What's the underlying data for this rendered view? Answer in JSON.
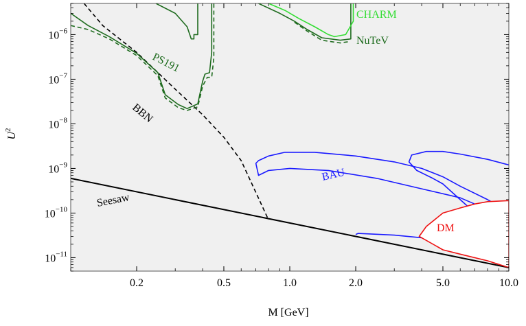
{
  "chart_data": {
    "type": "line",
    "xlabel": "M [GeV]",
    "ylabel": "U",
    "ylabel_sup": "2",
    "x_scale": "log",
    "y_scale": "log",
    "xlim": [
      0.1,
      10.0
    ],
    "ylim": [
      5e-12,
      5e-06
    ],
    "x_ticks": [
      {
        "value": 0.2,
        "label": "0.2"
      },
      {
        "value": 0.5,
        "label": "0.5"
      },
      {
        "value": 1.0,
        "label": "1.0"
      },
      {
        "value": 2.0,
        "label": "2.0"
      },
      {
        "value": 5.0,
        "label": "5.0"
      },
      {
        "value": 10.0,
        "label": "10.0"
      }
    ],
    "y_ticks": [
      {
        "value": 1e-11,
        "base": "10",
        "exp": "−11"
      },
      {
        "value": 1e-10,
        "base": "10",
        "exp": "−10"
      },
      {
        "value": 1e-09,
        "base": "10",
        "exp": "−9"
      },
      {
        "value": 1e-08,
        "base": "10",
        "exp": "−8"
      },
      {
        "value": 1e-07,
        "base": "10",
        "exp": "−7"
      },
      {
        "value": 1e-06,
        "base": "10",
        "exp": "−6"
      }
    ],
    "colors": {
      "background": "#f0f0f0",
      "frame": "#555555",
      "seesaw": "#000000",
      "bbn": "#000000",
      "ps191": "#1e6b1e",
      "nutev": "#1e6b1e",
      "charm": "#33dd33",
      "bau": "#1a1aff",
      "dm": "#ee1111",
      "dm_fill": "#ffffff"
    },
    "labels": {
      "charm": "CHARM",
      "nutev": "NuTeV",
      "ps191": "PS191",
      "bbn": "BBN",
      "bau": "BAU",
      "seesaw": "Seesaw",
      "dm": "DM"
    },
    "series": [
      {
        "key": "seesaw",
        "style": "solid",
        "x": [
          0.1,
          10.0
        ],
        "y": [
          6e-10,
          6e-12
        ]
      },
      {
        "key": "bbn",
        "style": "dashed",
        "x": [
          0.115,
          0.14,
          0.2,
          0.3,
          0.4,
          0.5,
          0.6,
          0.8
        ],
        "y": [
          5e-06,
          1.6e-06,
          4e-07,
          6e-08,
          1.6e-08,
          5e-09,
          1.5e-09,
          7e-11
        ]
      },
      {
        "key": "ps191",
        "style": "solid",
        "x": [
          0.1,
          0.12,
          0.15,
          0.2,
          0.25,
          0.27,
          0.31,
          0.34,
          0.38,
          0.4,
          0.41,
          0.43,
          0.44,
          0.44
        ],
        "y": [
          3e-06,
          1.6e-06,
          9e-07,
          3.8e-07,
          1.4e-07,
          4.5e-08,
          2.7e-08,
          2.2e-08,
          2.8e-08,
          9e-08,
          1.3e-07,
          1.4e-07,
          4e-07,
          5e-06
        ]
      },
      {
        "key": "ps191",
        "style": "dashed",
        "x": [
          0.1,
          0.12,
          0.15,
          0.2,
          0.25,
          0.27,
          0.31,
          0.34,
          0.38,
          0.4,
          0.42,
          0.44,
          0.45,
          0.45
        ],
        "y": [
          1.6e-06,
          1.3e-06,
          8e-07,
          3.4e-07,
          1.2e-07,
          3.8e-08,
          2.3e-08,
          2e-08,
          2.4e-08,
          7e-08,
          1.1e-07,
          1.1e-07,
          3e-07,
          5e-06
        ]
      },
      {
        "key": "ps191",
        "style": "solid",
        "x": [
          0.245,
          0.3,
          0.34,
          0.355,
          0.365,
          0.365,
          0.38,
          0.38
        ],
        "y": [
          5e-06,
          3e-06,
          1.5e-06,
          8e-07,
          8e-07,
          1e-06,
          1e-06,
          5e-06
        ]
      },
      {
        "key": "nutev",
        "style": "solid",
        "x": [
          0.72,
          0.9,
          1.05,
          1.2,
          1.4,
          1.7,
          1.9,
          1.9
        ],
        "y": [
          5e-06,
          3e-06,
          2e-06,
          1.3e-06,
          8.5e-07,
          7.5e-07,
          8e-07,
          5e-06
        ]
      },
      {
        "key": "nutev",
        "style": "dashed",
        "x": [
          1.05,
          1.2,
          1.4,
          1.7,
          1.88
        ],
        "y": [
          1.9e-06,
          1.2e-06,
          7.5e-07,
          6.5e-07,
          7e-07
        ]
      },
      {
        "key": "charm",
        "style": "solid",
        "x": [
          0.8,
          0.95,
          1.1,
          1.3,
          1.5,
          1.6,
          1.8,
          1.95,
          1.95
        ],
        "y": [
          5e-06,
          3.5e-06,
          2.3e-06,
          1.5e-06,
          1e-06,
          9e-07,
          1e-06,
          2e-06,
          5e-06
        ]
      },
      {
        "key": "bau",
        "style": "solid",
        "closed": true,
        "x": [
          0.7,
          0.72,
          0.8,
          0.95,
          1.3,
          2.0,
          3.0,
          4.0,
          5.0,
          6.0,
          8.0,
          10.0,
          10.0,
          8.0,
          6.0,
          4.0,
          2.5,
          1.5,
          1.0,
          0.8,
          0.72
        ],
        "y": [
          1.3e-09,
          1.5e-09,
          1.9e-09,
          2.3e-09,
          2.3e-09,
          1.9e-09,
          1.4e-09,
          1e-09,
          6.5e-10,
          4e-10,
          2e-10,
          1.1e-10,
          6e-11,
          1.2e-10,
          2.2e-10,
          3.5e-10,
          6e-10,
          9e-10,
          1e-09,
          9e-10,
          7e-10
        ]
      },
      {
        "key": "bau",
        "style": "solid",
        "x": [
          10.0,
          8.0,
          6.0,
          5.0,
          4.2,
          3.6,
          3.5,
          3.8,
          4.5,
          5.0,
          5.4,
          6.5,
          8.0,
          10.0
        ],
        "y": [
          1.2e-09,
          1.6e-09,
          2.1e-09,
          2.4e-09,
          2.4e-09,
          2e-09,
          1.4e-09,
          9e-10,
          6e-10,
          4.5e-10,
          3.2e-10,
          1.4e-10,
          8e-11,
          6e-11
        ]
      },
      {
        "key": "bau",
        "style": "solid",
        "x": [
          2.0,
          2.05,
          3.0,
          4.0,
          5.0,
          6.0,
          8.0,
          10.0
        ],
        "y": [
          3.3e-11,
          3.5e-11,
          3.2e-11,
          2.8e-11,
          2.2e-11,
          1.8e-11,
          1.3e-11,
          8e-12
        ]
      },
      {
        "key": "dm",
        "style": "solid",
        "closed": true,
        "fill": true,
        "x": [
          3.9,
          4.2,
          5.0,
          6.0,
          7.0,
          8.0,
          10.0,
          10.0,
          8.0,
          6.0,
          5.0
        ],
        "y": [
          3e-11,
          5e-11,
          1e-10,
          1.3e-10,
          1.6e-10,
          1.8e-10,
          1.9e-10,
          6e-12,
          8.5e-12,
          1.2e-11,
          1.5e-11
        ]
      }
    ]
  }
}
